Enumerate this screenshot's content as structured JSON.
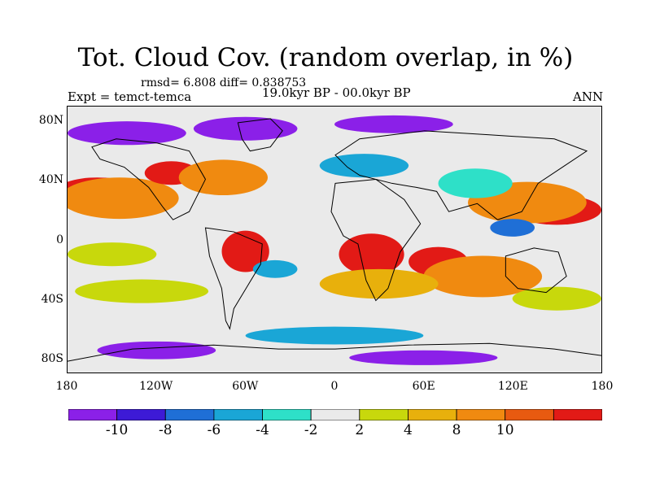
{
  "header": {
    "title": "Tot. Cloud Cov. (random overlap, in %)",
    "stats": "rmsd= 6.808 diff= 0.838753",
    "experiment": "Expt = temct-temca",
    "period": "19.0kyr BP - 00.0kyr BP",
    "season": "ANN"
  },
  "axes": {
    "y_ticks": [
      {
        "label": "80N",
        "lat": 80
      },
      {
        "label": "40N",
        "lat": 40
      },
      {
        "label": "0",
        "lat": 0
      },
      {
        "label": "40S",
        "lat": -40
      },
      {
        "label": "80S",
        "lat": -80
      }
    ],
    "x_ticks": [
      {
        "label": "180",
        "lon": -180
      },
      {
        "label": "120W",
        "lon": -120
      },
      {
        "label": "60W",
        "lon": -60
      },
      {
        "label": "0",
        "lon": 0
      },
      {
        "label": "60E",
        "lon": 60
      },
      {
        "label": "120E",
        "lon": 120
      },
      {
        "label": "180",
        "lon": 180
      }
    ]
  },
  "colorbar": {
    "colors": [
      "#8b20e8",
      "#3d1ad6",
      "#1f6fd6",
      "#1aa6d6",
      "#2ee0c8",
      "#eaeaea",
      "#c8d80c",
      "#e8b00c",
      "#f08a10",
      "#e85a10",
      "#e21a16"
    ],
    "labels": [
      {
        "text": "-10",
        "boundary": 1
      },
      {
        "text": "-8",
        "boundary": 2
      },
      {
        "text": "-6",
        "boundary": 3
      },
      {
        "text": "-4",
        "boundary": 4
      },
      {
        "text": "-2",
        "boundary": 5
      },
      {
        "text": "2",
        "boundary": 6
      },
      {
        "text": "4",
        "boundary": 7
      },
      {
        "text": "8",
        "boundary": 8
      },
      {
        "text": "10",
        "boundary": 9
      }
    ]
  },
  "map": {
    "background_color": "#eaeaea",
    "fields": [
      {
        "color": "#e21a16",
        "lon": -160,
        "lat": 32,
        "rlon": 28,
        "rlat": 10
      },
      {
        "color": "#f08a10",
        "lon": -145,
        "lat": 28,
        "rlon": 40,
        "rlat": 14
      },
      {
        "color": "#e21a16",
        "lon": -110,
        "lat": 45,
        "rlon": 18,
        "rlat": 8
      },
      {
        "color": "#f08a10",
        "lon": -75,
        "lat": 42,
        "rlon": 30,
        "rlat": 12
      },
      {
        "color": "#e21a16",
        "lon": 150,
        "lat": 20,
        "rlon": 30,
        "rlat": 10
      },
      {
        "color": "#f08a10",
        "lon": 130,
        "lat": 25,
        "rlon": 40,
        "rlat": 14
      },
      {
        "color": "#e21a16",
        "lon": -60,
        "lat": -8,
        "rlon": 16,
        "rlat": 14
      },
      {
        "color": "#e21a16",
        "lon": 25,
        "lat": -10,
        "rlon": 22,
        "rlat": 14
      },
      {
        "color": "#e21a16",
        "lon": 70,
        "lat": -15,
        "rlon": 20,
        "rlat": 10
      },
      {
        "color": "#f08a10",
        "lon": 100,
        "lat": -25,
        "rlon": 40,
        "rlat": 14
      },
      {
        "color": "#c8d80c",
        "lon": -130,
        "lat": -35,
        "rlon": 45,
        "rlat": 8
      },
      {
        "color": "#e8b00c",
        "lon": 30,
        "lat": -30,
        "rlon": 40,
        "rlat": 10
      },
      {
        "color": "#c8d80c",
        "lon": -150,
        "lat": -10,
        "rlon": 30,
        "rlat": 8
      },
      {
        "color": "#8b20e8",
        "lon": -140,
        "lat": 72,
        "rlon": 40,
        "rlat": 8
      },
      {
        "color": "#8b20e8",
        "lon": -60,
        "lat": 75,
        "rlon": 35,
        "rlat": 8
      },
      {
        "color": "#8b20e8",
        "lon": 40,
        "lat": 78,
        "rlon": 40,
        "rlat": 6
      },
      {
        "color": "#1aa6d6",
        "lon": 20,
        "lat": 50,
        "rlon": 30,
        "rlat": 8
      },
      {
        "color": "#2ee0c8",
        "lon": 95,
        "lat": 38,
        "rlon": 25,
        "rlat": 10
      },
      {
        "color": "#1f6fd6",
        "lon": 120,
        "lat": 8,
        "rlon": 15,
        "rlat": 6
      },
      {
        "color": "#1aa6d6",
        "lon": -40,
        "lat": -20,
        "rlon": 15,
        "rlat": 6
      },
      {
        "color": "#8b20e8",
        "lon": -120,
        "lat": -75,
        "rlon": 40,
        "rlat": 6
      },
      {
        "color": "#8b20e8",
        "lon": 60,
        "lat": -80,
        "rlon": 50,
        "rlat": 5
      },
      {
        "color": "#1aa6d6",
        "lon": 0,
        "lat": -65,
        "rlon": 60,
        "rlat": 6
      },
      {
        "color": "#c8d80c",
        "lon": 150,
        "lat": -40,
        "rlon": 30,
        "rlat": 8
      }
    ]
  }
}
